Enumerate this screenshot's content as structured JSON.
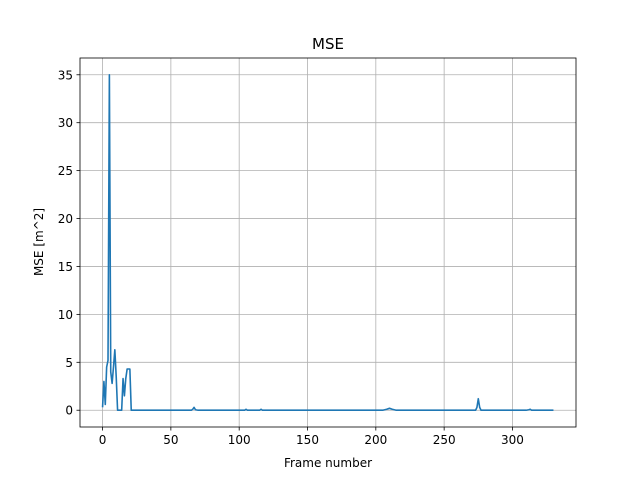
{
  "chart_data": {
    "type": "line",
    "title": "MSE",
    "xlabel": "Frame number",
    "ylabel": "MSE [m^2]",
    "xlim": [
      -16.5,
      346.5
    ],
    "ylim": [
      -1.75,
      36.75
    ],
    "xticks": [
      0,
      50,
      100,
      150,
      200,
      250,
      300
    ],
    "yticks": [
      0,
      5,
      10,
      15,
      20,
      25,
      30,
      35
    ],
    "grid": true,
    "legend": "none",
    "line_color": "#1f77b4",
    "series": [
      {
        "x": [
          0,
          1,
          2,
          3,
          4,
          5,
          6,
          7,
          8,
          9,
          10,
          11,
          12,
          13,
          14,
          15,
          16,
          17,
          18,
          19,
          20,
          21,
          22,
          23,
          25,
          30,
          35,
          40,
          45,
          50,
          55,
          60,
          65,
          66,
          67,
          68,
          70,
          75,
          80,
          85,
          90,
          95,
          100,
          104,
          105,
          106,
          110,
          115,
          116,
          117,
          120,
          130,
          140,
          150,
          160,
          170,
          180,
          190,
          200,
          205,
          208,
          210,
          212,
          215,
          220,
          230,
          240,
          250,
          260,
          270,
          273,
          274,
          275,
          276,
          277,
          278,
          280,
          290,
          300,
          310,
          312,
          313,
          314,
          320,
          330
        ],
        "y": [
          0.3,
          3.0,
          0.6,
          4.5,
          5.2,
          35.0,
          4.0,
          2.8,
          4.5,
          6.3,
          3.5,
          0.0,
          0.0,
          0.0,
          0.0,
          3.3,
          1.5,
          3.3,
          4.3,
          4.3,
          4.3,
          0.0,
          0.0,
          0.0,
          0.0,
          0.0,
          0.0,
          0.0,
          0.0,
          0.0,
          0.0,
          0.0,
          0.0,
          0.1,
          0.3,
          0.05,
          0.0,
          0.0,
          0.0,
          0.0,
          0.0,
          0.0,
          0.0,
          0.0,
          0.1,
          0.0,
          0.0,
          0.0,
          0.1,
          0.0,
          0.0,
          0.0,
          0.0,
          0.0,
          0.0,
          0.0,
          0.0,
          0.0,
          0.0,
          0.0,
          0.1,
          0.2,
          0.1,
          0.0,
          0.0,
          0.0,
          0.0,
          0.0,
          0.0,
          0.0,
          0.0,
          0.3,
          1.2,
          0.3,
          0.0,
          0.0,
          0.0,
          0.0,
          0.0,
          0.0,
          0.05,
          0.1,
          0.0,
          0.0,
          0.0
        ]
      }
    ]
  }
}
